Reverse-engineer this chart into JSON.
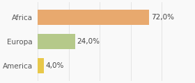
{
  "categories": [
    "America",
    "Europa",
    "Africa"
  ],
  "values": [
    4.0,
    24.0,
    72.0
  ],
  "bar_colors": [
    "#e8c84a",
    "#b5c98a",
    "#e8a96e"
  ],
  "labels": [
    "4,0%",
    "24,0%",
    "72,0%"
  ],
  "xlim": [
    0,
    100
  ],
  "background_color": "#f9f9f9",
  "bar_height": 0.62,
  "label_fontsize": 7.5,
  "tick_fontsize": 7.5,
  "grid_color": "#e0e0e0"
}
